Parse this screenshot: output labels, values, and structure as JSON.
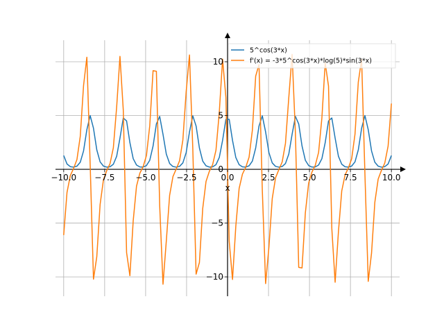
{
  "chart_data": {
    "type": "line",
    "title": "",
    "xlabel": "x",
    "ylabel": "",
    "xlim": [
      -10.5,
      10.5
    ],
    "ylim": [
      -11.8,
      12.0
    ],
    "grid": true,
    "legend_position": "top-right",
    "x_ticks": [
      -10.0,
      -7.5,
      -5.0,
      -2.5,
      0.0,
      2.5,
      5.0,
      7.5,
      10.0
    ],
    "x_tick_labels": [
      "−10.0",
      "−7.5",
      "−5.0",
      "−2.5",
      "0.0",
      "2.5",
      "5.0",
      "7.5",
      "10.0"
    ],
    "y_ticks": [
      -10,
      -5,
      0,
      5,
      10
    ],
    "y_tick_labels": [
      "−10",
      "−5",
      "0",
      "5",
      "10"
    ],
    "sampling": {
      "start": -10,
      "stop": 10,
      "count": 100
    },
    "series": [
      {
        "name": "5^cos(3*x)",
        "color": "#1f77b4",
        "function": "f"
      },
      {
        "name": "f'(x) = -3*5^cos(3*x)*log(5)*sin(3*x)",
        "color": "#ff7f0e",
        "function": "df"
      }
    ]
  }
}
